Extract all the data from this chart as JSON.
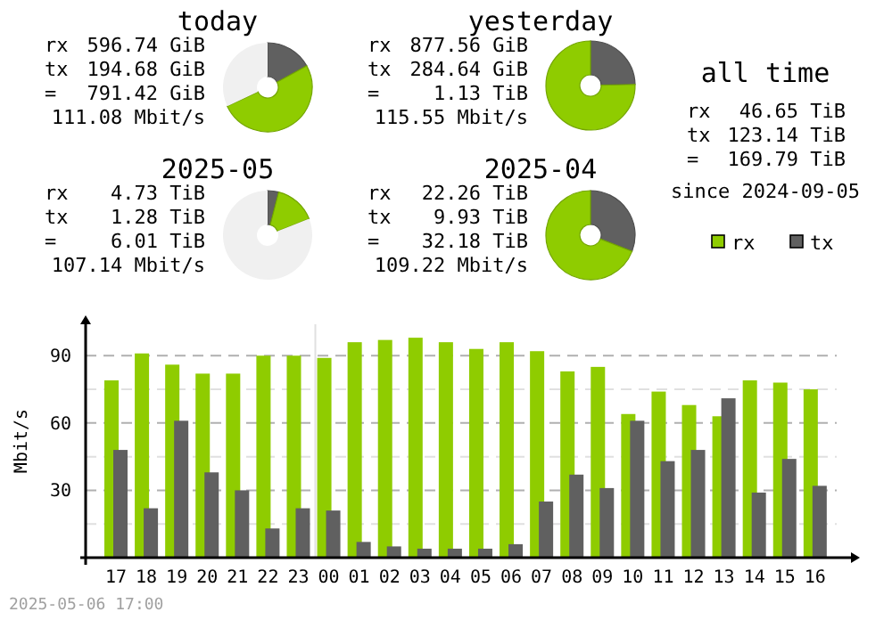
{
  "chart_data": [
    {
      "type": "donut",
      "title": "today",
      "categories": [
        null,
        null,
        null
      ],
      "values": [
        17,
        51,
        32
      ],
      "colors": [
        "#606060",
        "#8fcc00",
        "#f0f0f0"
      ],
      "annotations": [
        "rx 596.74 GiB",
        "tx 194.68 GiB",
        "= 791.42 GiB",
        "111.08 Mbit/s"
      ]
    },
    {
      "type": "donut",
      "title": "yesterday",
      "categories": [
        null,
        null
      ],
      "values": [
        24.6,
        75.4
      ],
      "colors": [
        "#606060",
        "#8fcc00"
      ],
      "annotations": [
        "rx 877.56 GiB",
        "tx 284.64 GiB",
        "= 1.13 TiB",
        "115.55 Mbit/s"
      ]
    },
    {
      "type": "donut",
      "title": "2025-05",
      "categories": [
        null,
        null,
        null
      ],
      "values": [
        4,
        15,
        81
      ],
      "colors": [
        "#606060",
        "#8fcc00",
        "#f0f0f0"
      ],
      "annotations": [
        "rx 4.73 TiB",
        "tx 1.28 TiB",
        "= 6.01 TiB",
        "107.14 Mbit/s"
      ]
    },
    {
      "type": "donut",
      "title": "2025-04",
      "categories": [
        null,
        null
      ],
      "values": [
        30.9,
        69.1
      ],
      "colors": [
        "#606060",
        "#8fcc00"
      ],
      "annotations": [
        "rx 22.26 TiB",
        "tx 9.93 TiB",
        "= 32.18 TiB",
        "109.22 Mbit/s"
      ]
    },
    {
      "type": "other",
      "title": "all time",
      "annotations": [
        "rx 46.65 TiB",
        "tx 123.14 TiB",
        "= 169.79 TiB",
        "since 2024-09-05"
      ]
    },
    {
      "type": "bar",
      "ylabel": "Mbit/s",
      "categories": [
        "17",
        "18",
        "19",
        "20",
        "21",
        "22",
        "23",
        "00",
        "01",
        "02",
        "03",
        "04",
        "05",
        "06",
        "07",
        "08",
        "09",
        "10",
        "11",
        "12",
        "13",
        "14",
        "15",
        "16"
      ],
      "series": [
        {
          "name": "rx",
          "color": "#8fcc00",
          "values": [
            79,
            91,
            86,
            82,
            82,
            90,
            90,
            89,
            96,
            97,
            98,
            96,
            93,
            96,
            92,
            83,
            85,
            64,
            74,
            68,
            63,
            79,
            78,
            75
          ]
        },
        {
          "name": "tx",
          "color": "#606060",
          "values": [
            48,
            22,
            61,
            38,
            30,
            13,
            22,
            21,
            7,
            5,
            4,
            4,
            4,
            6,
            25,
            37,
            31,
            61,
            43,
            48,
            71,
            29,
            44,
            32
          ]
        }
      ],
      "ylim": [
        0,
        104
      ],
      "yticks": [
        {
          "value": 15,
          "label": null
        },
        30,
        {
          "value": 45,
          "label": null
        },
        60,
        {
          "value": 75,
          "label": null
        },
        90
      ],
      "grid": "y",
      "legend": "top right",
      "ref_lines": [
        {
          "axis": "x",
          "value": "00",
          "color": "#e0e0e0"
        }
      ],
      "annotations": [
        "2025-05-06 17:00"
      ]
    }
  ]
}
